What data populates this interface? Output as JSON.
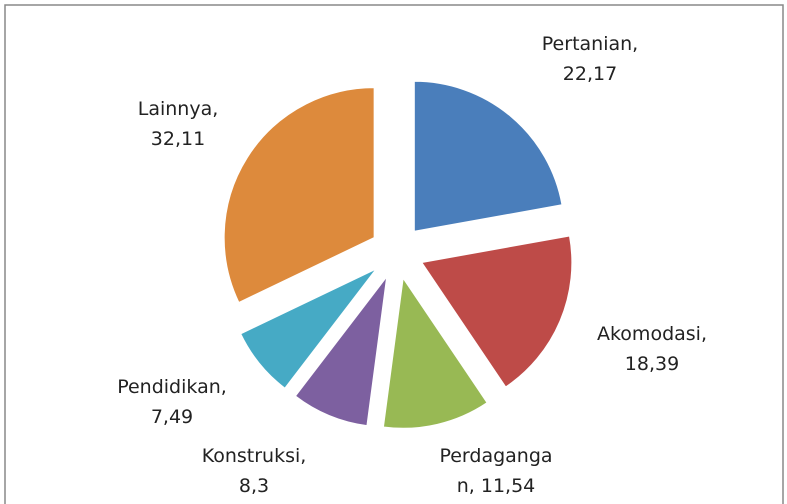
{
  "chart_data": {
    "type": "pie",
    "labels": [
      "Pertanian,\n22,17",
      "Akomodasi,\n18,39",
      "Perdaganga\nn, 11,54",
      "Konstruksi,\n8,3",
      "Pendidikan,\n7,49",
      "Lainnya,\n32,11"
    ],
    "values": [
      22.17,
      18.39,
      11.54,
      8.3,
      7.49,
      32.11
    ],
    "colors": [
      "#4a7ebb",
      "#be4b48",
      "#98b954",
      "#7d60a0",
      "#46aac5",
      "#dd8a3c"
    ],
    "exploded": true
  }
}
